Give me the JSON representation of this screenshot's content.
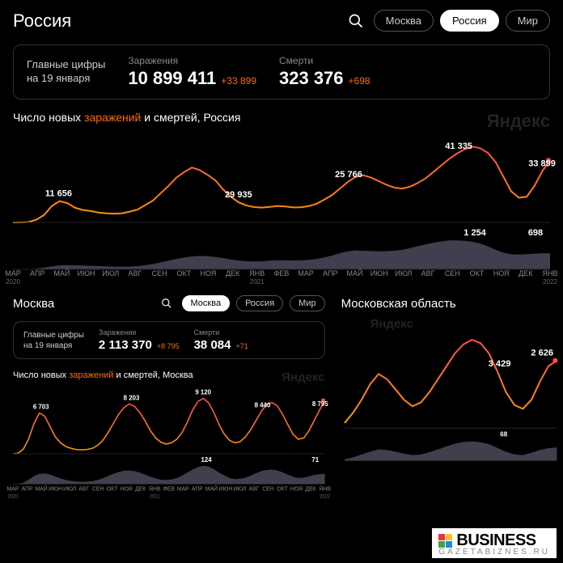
{
  "colors": {
    "bg": "#000000",
    "border": "#333333",
    "text": "#ffffff",
    "muted": "#888888",
    "accent": "#ff6b00",
    "gradient_top": "#ff4d4d",
    "gradient_bot": "#ff9900",
    "area_fill": "#4a4a5a",
    "watermark": "#222222"
  },
  "top": {
    "title": "Россия",
    "pills": [
      {
        "label": "Москва",
        "active": false
      },
      {
        "label": "Россия",
        "active": true
      },
      {
        "label": "Мир",
        "active": false
      }
    ],
    "stats_caption_l1": "Главные цифры",
    "stats_caption_l2": "на 19 января",
    "stats": [
      {
        "head": "Заражения",
        "value": "10 899 411",
        "delta": "+33 899"
      },
      {
        "head": "Смерти",
        "value": "323 376",
        "delta": "+698"
      }
    ],
    "chart_title_pre": "Число новых ",
    "chart_title_acc1": "заражений",
    "chart_title_mid": " и ",
    "chart_title_acc2": "смертей",
    "chart_title_post": ", Россия",
    "watermark": "Яндекс",
    "infections": {
      "ymax": 45000,
      "peaks": [
        {
          "x": 0.085,
          "label": "11 656"
        },
        {
          "x": 0.42,
          "label": "29 935"
        },
        {
          "x": 0.625,
          "label": "25 766"
        },
        {
          "x": 0.83,
          "label": "41 335"
        },
        {
          "x": 0.985,
          "label": "33 899"
        }
      ],
      "series": [
        0,
        0,
        200,
        1500,
        4000,
        9000,
        11656,
        10500,
        8000,
        6800,
        6200,
        5400,
        5000,
        4800,
        5000,
        5900,
        7000,
        9500,
        12000,
        16000,
        20000,
        24500,
        27500,
        29935,
        28500,
        26000,
        23000,
        18000,
        14000,
        11000,
        9200,
        8400,
        8100,
        8500,
        9000,
        8700,
        8200,
        8300,
        8900,
        10200,
        12500,
        15000,
        18500,
        22000,
        24800,
        25766,
        24500,
        22500,
        20500,
        19000,
        18500,
        19500,
        21500,
        24000,
        27500,
        31000,
        34500,
        37500,
        39800,
        41335,
        40500,
        38000,
        33000,
        25000,
        17000,
        13500,
        14000,
        20000,
        28000,
        33899
      ]
    },
    "deaths": {
      "ymax": 1400,
      "peaks": [
        {
          "x": 0.86,
          "label": "1 254"
        },
        {
          "x": 0.985,
          "label": "698"
        }
      ],
      "series": [
        0,
        0,
        5,
        30,
        80,
        130,
        170,
        180,
        175,
        165,
        155,
        145,
        130,
        120,
        115,
        120,
        140,
        180,
        230,
        300,
        380,
        450,
        510,
        560,
        580,
        570,
        540,
        490,
        430,
        380,
        350,
        340,
        350,
        380,
        400,
        395,
        385,
        390,
        410,
        450,
        520,
        600,
        700,
        780,
        820,
        810,
        790,
        780,
        790,
        810,
        850,
        920,
        1000,
        1080,
        1150,
        1210,
        1250,
        1254,
        1240,
        1200,
        1120,
        1000,
        850,
        720,
        650,
        640,
        660,
        680,
        695,
        698
      ]
    },
    "xaxis": {
      "months": [
        "МАР",
        "АПР",
        "МАЙ",
        "ИЮН",
        "ИЮЛ",
        "АВГ",
        "СЕН",
        "ОКТ",
        "НОЯ",
        "ДЕК",
        "ЯНВ",
        "ФЕВ",
        "МАР",
        "АПР",
        "МАЙ",
        "ИЮН",
        "ИЮЛ",
        "АВГ",
        "СЕН",
        "ОКТ",
        "НОЯ",
        "ДЕК",
        "ЯНВ"
      ],
      "years": {
        "0": "2020",
        "10": "2021",
        "22": "2022"
      }
    }
  },
  "moscow": {
    "title": "Москва",
    "pills": [
      {
        "label": "Москва",
        "active": true
      },
      {
        "label": "Россия",
        "active": false
      },
      {
        "label": "Мир",
        "active": false
      }
    ],
    "stats_caption_l1": "Главные цифры",
    "stats_caption_l2": "на 19 января",
    "stats": [
      {
        "head": "Заражения",
        "value": "2 113 370",
        "delta": "+8 795"
      },
      {
        "head": "Смерти",
        "value": "38 084",
        "delta": "+71"
      }
    ],
    "chart_title_pre": "Число новых ",
    "chart_title_acc1": "заражений",
    "chart_title_mid": " и ",
    "chart_title_acc2": "смертей",
    "chart_title_post": ", Москва",
    "watermark": "Яндекс",
    "infections": {
      "ymax": 10000,
      "peaks": [
        {
          "x": 0.09,
          "label": "6 703"
        },
        {
          "x": 0.38,
          "label": "8 203"
        },
        {
          "x": 0.61,
          "label": "9 120"
        },
        {
          "x": 0.8,
          "label": "8 440"
        },
        {
          "x": 0.985,
          "label": "8 795"
        }
      ],
      "series": [
        0,
        100,
        800,
        2500,
        5000,
        6703,
        6200,
        4500,
        2800,
        1800,
        1200,
        900,
        700,
        650,
        700,
        900,
        1400,
        2200,
        3500,
        5000,
        6500,
        7600,
        8203,
        7800,
        6800,
        5400,
        3800,
        2600,
        1900,
        1600,
        1800,
        2400,
        3500,
        5200,
        7200,
        8600,
        9120,
        8400,
        6800,
        4800,
        3200,
        2200,
        1800,
        2000,
        2800,
        4000,
        5500,
        7000,
        8100,
        8440,
        7900,
        6500,
        4800,
        3200,
        2400,
        2600,
        3800,
        5500,
        7200,
        8795
      ]
    },
    "deaths": {
      "ymax": 140,
      "peaks": [
        {
          "x": 0.62,
          "label": "124"
        },
        {
          "x": 0.985,
          "label": "71"
        }
      ],
      "series": [
        0,
        2,
        10,
        30,
        55,
        70,
        72,
        65,
        52,
        38,
        28,
        22,
        18,
        16,
        17,
        20,
        28,
        40,
        55,
        70,
        82,
        90,
        92,
        88,
        78,
        65,
        50,
        38,
        30,
        28,
        32,
        42,
        58,
        78,
        98,
        115,
        124,
        118,
        100,
        78,
        58,
        42,
        34,
        36,
        44,
        58,
        74,
        88,
        96,
        98,
        92,
        80,
        64,
        50,
        42,
        44,
        52,
        62,
        68,
        71
      ]
    }
  },
  "oblast": {
    "title": "Московская область",
    "watermark": "Яндекс",
    "infections": {
      "ymax": 3800,
      "peaks": [
        {
          "x": 0.73,
          "label": "3 429"
        },
        {
          "x": 0.985,
          "label": "2 626"
        }
      ],
      "series": [
        200,
        600,
        1100,
        1700,
        2100,
        1900,
        1500,
        1100,
        850,
        1000,
        1400,
        1900,
        2400,
        2900,
        3250,
        3429,
        3300,
        2900,
        2200,
        1400,
        900,
        750,
        1100,
        1800,
        2400,
        2626
      ]
    },
    "deaths": {
      "ymax": 80,
      "peaks": [
        {
          "x": 0.75,
          "label": "68"
        }
      ],
      "series": [
        5,
        12,
        22,
        32,
        40,
        38,
        32,
        25,
        20,
        22,
        30,
        40,
        50,
        60,
        66,
        68,
        65,
        58,
        45,
        32,
        22,
        20,
        28,
        38,
        44,
        47
      ]
    }
  },
  "logo": {
    "main": "BUSINESS",
    "sub": "GAZETABIZNES.RU",
    "sq_colors": [
      "#e53935",
      "#fbc02d",
      "#43a047",
      "#1e88e5"
    ]
  }
}
